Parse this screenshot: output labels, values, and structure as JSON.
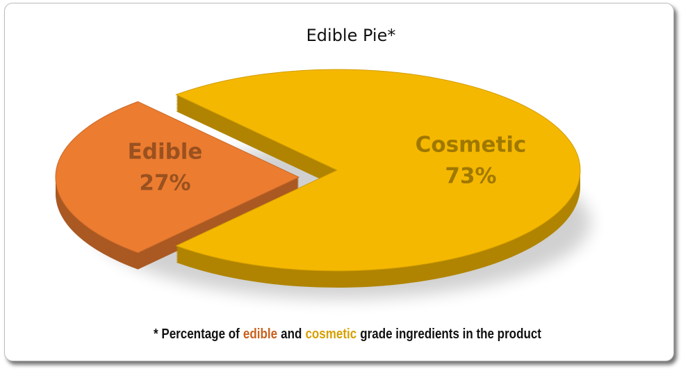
{
  "chart_data": {
    "type": "pie",
    "title": "Edible Pie*",
    "categories": [
      "Edible",
      "Cosmetic"
    ],
    "values": [
      27,
      73
    ],
    "value_labels": [
      "27%",
      "73%"
    ],
    "colors": [
      "#ec7c30",
      "#f5b800"
    ],
    "footnote": [
      "* Percentage of",
      "edible",
      "and",
      "cosmetic",
      "grade ingredients in the product"
    ]
  }
}
